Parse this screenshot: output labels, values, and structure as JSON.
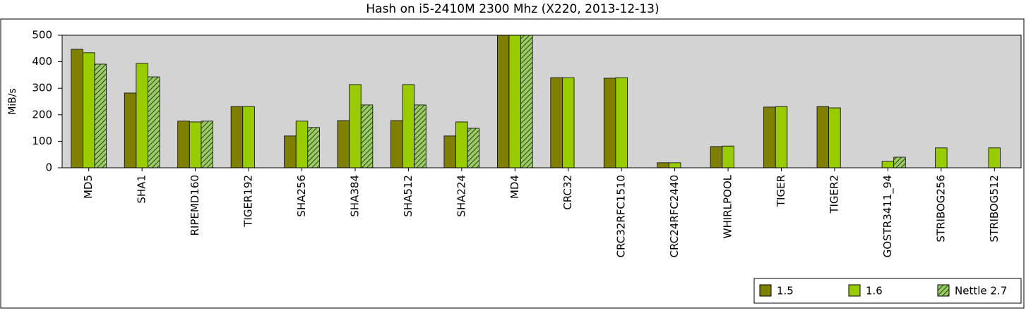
{
  "chart_data": {
    "type": "bar",
    "title": "Hash on i5-2410M 2300 Mhz (X220, 2013-12-13)",
    "ylabel": "MiB/s",
    "categories": [
      "MD5",
      "SHA1",
      "RIPEMD160",
      "TIGER192",
      "SHA256",
      "SHA384",
      "SHA512",
      "SHA224",
      "MD4",
      "CRC32",
      "CRC32RFC1510",
      "CRC24RFC2440",
      "WHIRLPOOL",
      "TIGER",
      "TIGER2",
      "GOSTR3411_94",
      "STRIBOG256",
      "STRIBOG512"
    ],
    "series": [
      {
        "name": "1.5",
        "color": "#808000",
        "hatch": false,
        "values": [
          447,
          282,
          176,
          231,
          120,
          178,
          178,
          120,
          500,
          340,
          338,
          19,
          80,
          229,
          231,
          null,
          null,
          null
        ]
      },
      {
        "name": "1.6",
        "color": "#99cc00",
        "hatch": false,
        "values": [
          434,
          394,
          173,
          231,
          176,
          314,
          314,
          173,
          500,
          340,
          340,
          19,
          82,
          231,
          226,
          24,
          75,
          75
        ]
      },
      {
        "name": "Nettle 2.7",
        "color": "#99cc66",
        "hatch": true,
        "values": [
          391,
          343,
          176,
          null,
          152,
          237,
          237,
          149,
          500,
          null,
          null,
          null,
          null,
          null,
          null,
          40,
          null,
          null
        ]
      }
    ],
    "ylim": [
      0,
      500
    ],
    "yticks": [
      0,
      100,
      200,
      300,
      400,
      500
    ],
    "grid": false,
    "legend": "lower right",
    "plot_background": "#d3d3d3"
  }
}
